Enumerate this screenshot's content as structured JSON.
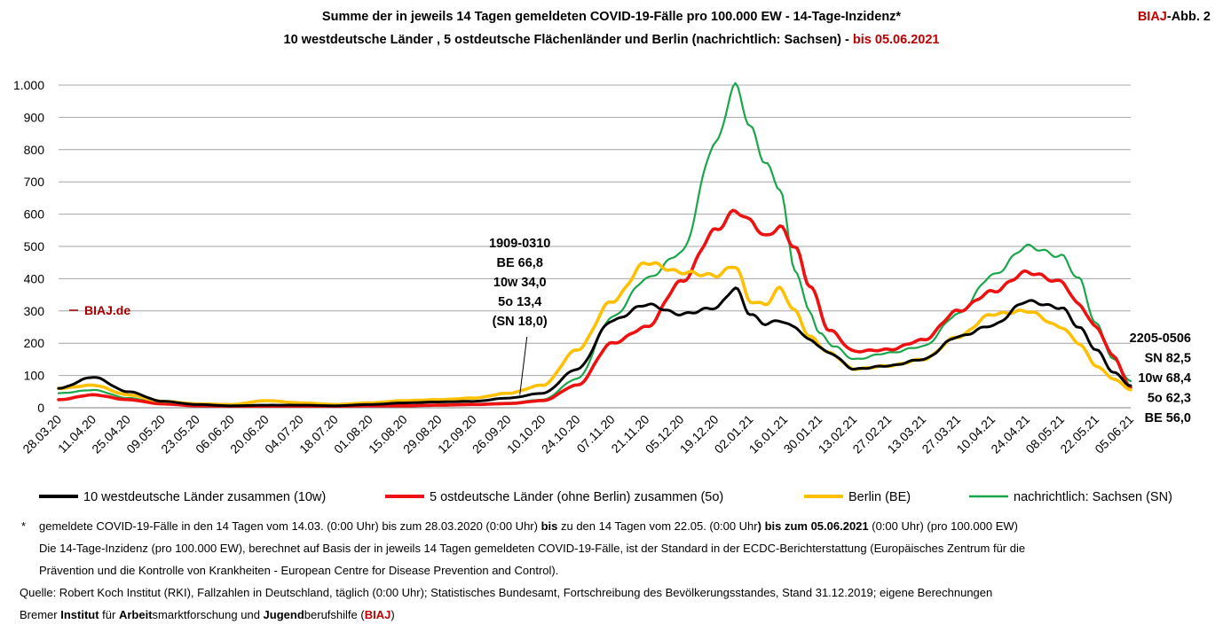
{
  "header": {
    "title_line1": "Summe der in jeweils 14 Tagen gemeldeten COVID-19-Fälle pro 100.000 EW - 14-Tage-Inzidenz*",
    "title_line2_main": "10 westdeutsche Länder , 5 ostdeutsche Flächenländer und Berlin (nachrichtlich: Sachsen) - ",
    "title_line2_date": "bis 05.06.2021",
    "fig_brand": "BIAJ",
    "fig_label": "-Abb. 2"
  },
  "watermark": "BIAJ.de",
  "chart_data": {
    "type": "line",
    "ylim": [
      0,
      1000
    ],
    "yticks": [
      0,
      100,
      200,
      300,
      400,
      500,
      600,
      700,
      800,
      900,
      1000
    ],
    "ytick_labels": [
      "0",
      "100",
      "200",
      "300",
      "400",
      "500",
      "600",
      "700",
      "800",
      "900",
      "1.000"
    ],
    "x_start": "28.03.20",
    "x_end": "05.06.21",
    "num_days": 434,
    "xtick_labels": [
      "28.03.20",
      "11.04.20",
      "25.04.20",
      "09.05.20",
      "23.05.20",
      "06.06.20",
      "20.06.20",
      "04.07.20",
      "18.07.20",
      "01.08.20",
      "15.08.20",
      "29.08.20",
      "12.09.20",
      "26.09.20",
      "10.10.20",
      "24.10.20",
      "07.11.20",
      "21.11.20",
      "05.12.20",
      "19.12.20",
      "02.01.21",
      "16.01.21",
      "30.01.21",
      "13.02.21",
      "27.02.21",
      "13.03.21",
      "27.03.21",
      "10.04.21",
      "24.04.21",
      "08.05.21",
      "22.05.21",
      "05.06.21"
    ],
    "xtick_step_days": 14,
    "grid": true,
    "series": [
      {
        "key": "sn",
        "name": "nachrichtlich: Sachsen (SN)",
        "color": "#1aa64a",
        "days": [
          0,
          14,
          28,
          42,
          56,
          70,
          84,
          98,
          112,
          126,
          140,
          154,
          168,
          182,
          196,
          210,
          224,
          238,
          252,
          266,
          274,
          280,
          286,
          292,
          298,
          304,
          308,
          314,
          322,
          336,
          350,
          364,
          378,
          392,
          406,
          413,
          420,
          427,
          434
        ],
        "values": [
          45,
          55,
          30,
          15,
          8,
          6,
          6,
          6,
          6,
          8,
          8,
          10,
          12,
          15,
          25,
          90,
          280,
          400,
          480,
          820,
          1000,
          870,
          760,
          680,
          430,
          300,
          230,
          190,
          150,
          170,
          190,
          290,
          410,
          500,
          470,
          400,
          260,
          150,
          82.5
        ]
      },
      {
        "key": "5o",
        "name": "5 ostdeutsche Länder (ohne Berlin) zusammen (5o)",
        "color": "#ee1111",
        "days": [
          0,
          14,
          28,
          42,
          56,
          70,
          84,
          98,
          112,
          126,
          140,
          154,
          168,
          182,
          196,
          210,
          224,
          238,
          252,
          266,
          274,
          280,
          286,
          292,
          298,
          304,
          312,
          322,
          336,
          350,
          364,
          378,
          392,
          406,
          413,
          420,
          427,
          434
        ],
        "values": [
          25,
          40,
          25,
          12,
          6,
          5,
          5,
          5,
          5,
          6,
          6,
          8,
          10,
          13,
          22,
          70,
          200,
          250,
          390,
          550,
          610,
          580,
          530,
          560,
          500,
          380,
          240,
          175,
          180,
          210,
          300,
          360,
          420,
          390,
          320,
          250,
          160,
          62.3
        ]
      },
      {
        "key": "be",
        "name": "Berlin (BE)",
        "color": "#ffc000",
        "days": [
          0,
          14,
          28,
          42,
          56,
          70,
          84,
          98,
          112,
          126,
          140,
          154,
          168,
          182,
          196,
          210,
          224,
          238,
          252,
          266,
          274,
          280,
          286,
          292,
          298,
          304,
          312,
          322,
          336,
          350,
          364,
          378,
          392,
          406,
          413,
          420,
          427,
          434
        ],
        "values": [
          60,
          70,
          40,
          20,
          12,
          10,
          22,
          15,
          10,
          15,
          22,
          25,
          30,
          45,
          70,
          180,
          330,
          450,
          420,
          410,
          440,
          330,
          320,
          370,
          300,
          220,
          170,
          120,
          130,
          150,
          220,
          290,
          300,
          250,
          200,
          130,
          90,
          56.0
        ]
      },
      {
        "key": "10w",
        "name": "10 westdeutsche Länder zusammen (10w)",
        "color": "#000000",
        "days": [
          0,
          14,
          28,
          42,
          56,
          70,
          84,
          98,
          112,
          126,
          140,
          154,
          168,
          182,
          196,
          210,
          224,
          238,
          252,
          266,
          274,
          280,
          286,
          292,
          298,
          304,
          312,
          322,
          336,
          350,
          364,
          378,
          392,
          406,
          413,
          420,
          427,
          434
        ],
        "values": [
          60,
          95,
          50,
          20,
          10,
          6,
          8,
          8,
          6,
          10,
          15,
          18,
          20,
          30,
          45,
          120,
          270,
          320,
          290,
          310,
          370,
          290,
          260,
          270,
          250,
          210,
          170,
          120,
          130,
          150,
          220,
          255,
          330,
          310,
          250,
          180,
          110,
          68.4
        ]
      }
    ],
    "legend_order": [
      "10w",
      "5o",
      "be",
      "sn"
    ],
    "annotation_mid": {
      "day": 186,
      "lines": [
        "1909-0310",
        "BE 66,8",
        "10w 34,0",
        "5o 13,4",
        "(SN 18,0)"
      ]
    },
    "annotation_end": {
      "lines": [
        "2205-0506",
        "SN 82,5",
        "10w 68,4",
        "5o 62,3",
        "BE 56,0"
      ]
    }
  },
  "footnotes": {
    "star": "*",
    "line1_a": "gemeldete COVID-19-Fälle in den 14 Tagen vom 14.03. (0:00 Uhr) bis zum 28.03.2020 (0:00 Uhr) ",
    "line1_bis": "bis",
    "line1_b": " zu den 14 Tagen vom 22.05. (0:00 Uhr",
    "line1_c": ") bis zum 05.06.2021",
    "line1_d": " (0:00 Uhr) (pro 100.000 EW)",
    "line2": "Die 14-Tage-Inzidenz (pro 100.000  EW), berechnet auf Basis der in jeweils 14 Tagen gemeldeten COVID-19-Fälle, ist der Standard in der ECDC-Berichterstattung  (Europäisches Zentrum für die",
    "line3": "Prävention und die Kontrolle von Krankheiten  - European Centre for Disease Prevention and Control).",
    "source": "Quelle: Robert Koch Institut (RKI), Fallzahlen in Deutschland, täglich (0:00 Uhr); Statistisches Bundesamt, Fortschreibung des Bevölkerungsstandes, Stand 31.12.2019; eigene Berechnungen",
    "inst_a": "Bremer ",
    "inst_b": "Institut",
    "inst_c": " für ",
    "inst_d": "Arbeit",
    "inst_e": "smarktforschung und ",
    "inst_f": "Jugend",
    "inst_g": "berufshilfe (",
    "inst_h": "BIAJ",
    "inst_i": ")"
  }
}
